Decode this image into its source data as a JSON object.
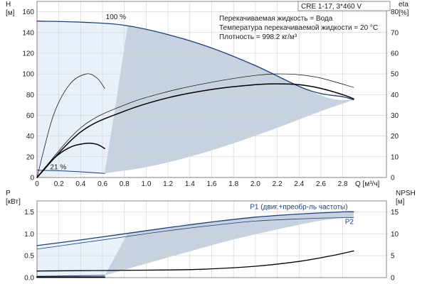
{
  "model_label": "CRE 1-17, 3*460 V",
  "info_lines": [
    "Перекачиваемая жидкость = Вода",
    "Температура перекачиваемой жидкости = 20 °C",
    "Плотность = 998.2 кг/м³"
  ],
  "colors": {
    "area_dark": "#c6d2df",
    "area_light": "#e8f0fa",
    "curve_blue": "#1e3f78",
    "curve_black": "#000000"
  },
  "chart_data": [
    {
      "type": "line",
      "id": "head-efficiency",
      "xlabel": "Q [м³/ч]",
      "ylabel": "H",
      "ylabel_unit": "[м]",
      "y2label": "eta",
      "y2label_unit": "[%]",
      "xlim": [
        0,
        3.2
      ],
      "ylim": [
        0,
        170
      ],
      "y2lim": [
        0,
        85
      ],
      "x_ticks": [
        "0",
        "0.2",
        "0.4",
        "0.6",
        "0.8",
        "1.0",
        "1.2",
        "1.4",
        "1.6",
        "1.8",
        "2.0",
        "2.2",
        "2.4",
        "2.6",
        "2.8"
      ],
      "y_ticks": [
        "0",
        "20",
        "40",
        "60",
        "80",
        "100",
        "120",
        "140",
        "160"
      ],
      "y2_ticks": [
        "0",
        "10",
        "20",
        "30",
        "40",
        "50",
        "60",
        "70",
        "80"
      ],
      "grid": true,
      "annotations": [
        {
          "text": "100 %",
          "x": 0.63,
          "y": 153
        },
        {
          "text": "21 %",
          "x": 0.12,
          "y": 8
        }
      ],
      "area": {
        "upper_x": [
          0,
          0.4,
          0.8,
          1.2,
          1.6,
          2.0,
          2.4,
          2.7,
          2.9
        ],
        "upper_y": [
          151,
          150,
          147,
          138,
          125,
          108,
          88,
          76,
          75
        ],
        "lower_x": [
          0.62,
          1.0,
          1.4,
          1.8,
          2.2,
          2.6,
          2.9
        ],
        "lower_y": [
          4,
          10,
          20,
          33,
          48,
          64,
          75
        ],
        "light_upper_x": [
          0,
          0.4,
          0.8,
          0.83
        ],
        "light_upper_y": [
          151,
          150,
          147,
          146
        ],
        "light_boundary_x": [
          0.83,
          0.72,
          0.62
        ],
        "light_boundary_y": [
          146,
          70,
          4
        ]
      },
      "series": [
        {
          "id": "head-100",
          "axis": "left",
          "color": "#1e3f78",
          "width": 1.3,
          "x": [
            0,
            0.4,
            0.8,
            1.2,
            1.6,
            2.0,
            2.4,
            2.6,
            2.8,
            2.9
          ],
          "y": [
            151,
            150,
            147,
            138,
            125,
            108,
            88,
            81,
            78,
            75
          ]
        },
        {
          "id": "head-21",
          "axis": "left",
          "color": "#1e3f78",
          "width": 1.0,
          "x": [
            0,
            0.2,
            0.4,
            0.62
          ],
          "y": [
            7,
            6.5,
            5.5,
            4
          ]
        },
        {
          "id": "eta-100",
          "axis": "right",
          "color": "#000000",
          "width": 1.5,
          "x": [
            0,
            0.4,
            0.8,
            1.2,
            1.6,
            2.0,
            2.2,
            2.4,
            2.6,
            2.8,
            2.9
          ],
          "y": [
            0,
            22,
            32,
            38.5,
            42.5,
            44.8,
            45.2,
            44.8,
            43,
            40,
            38
          ]
        },
        {
          "id": "eta-100-thin",
          "axis": "right",
          "color": "#000000",
          "width": 0.7,
          "x": [
            0,
            0.4,
            0.8,
            1.2,
            1.6,
            2.0,
            2.2,
            2.4,
            2.6,
            2.9
          ],
          "y": [
            0,
            24,
            35,
            41.5,
            46,
            49.3,
            50,
            49.6,
            48,
            43.5
          ]
        },
        {
          "id": "eta-21",
          "axis": "right",
          "color": "#000000",
          "width": 1.5,
          "x": [
            0,
            0.15,
            0.3,
            0.45,
            0.55,
            0.62
          ],
          "y": [
            0,
            9,
            14.5,
            16.5,
            16,
            14
          ]
        },
        {
          "id": "eta-21-thin",
          "axis": "right",
          "color": "#000000",
          "width": 0.7,
          "x": [
            0,
            0.15,
            0.3,
            0.45,
            0.55,
            0.62
          ],
          "y": [
            0,
            30,
            45,
            50,
            48,
            43
          ]
        }
      ]
    },
    {
      "type": "line",
      "id": "power-npsh",
      "ylabel": "P",
      "ylabel_unit": "[кВт]",
      "y2label": "NPSH",
      "y2label_unit": "[м]",
      "xlim": [
        0,
        3.2
      ],
      "ylim": [
        0,
        1.75
      ],
      "y2lim": [
        0,
        17.5
      ],
      "y_ticks": [
        "0.0",
        "0.5",
        "1.0",
        "1.5"
      ],
      "y2_ticks": [
        "0",
        "5",
        "10",
        "15"
      ],
      "grid": true,
      "area": {
        "upper_x": [
          0,
          0.4,
          0.8,
          1.2,
          1.6,
          2.0,
          2.4,
          2.8,
          2.9
        ],
        "upper_y": [
          0.73,
          0.86,
          1.0,
          1.14,
          1.27,
          1.38,
          1.45,
          1.5,
          1.5
        ],
        "lower_x": [
          0.62,
          1.0,
          1.4,
          1.8,
          2.2,
          2.6,
          2.9
        ],
        "lower_y": [
          0.05,
          0.32,
          0.6,
          0.87,
          1.1,
          1.3,
          1.38
        ],
        "light_upper_x": [
          0,
          0.4,
          0.8,
          0.83
        ],
        "light_upper_y": [
          0.73,
          0.86,
          1.0,
          1.01
        ],
        "light_boundary_x": [
          0.83,
          0.72,
          0.62
        ],
        "light_boundary_y": [
          1.01,
          0.5,
          0.05
        ]
      },
      "labels": [
        {
          "text": "P1 (двиг.+преобр-ль частоты)",
          "x": 1.95,
          "y": 1.56
        },
        {
          "text": "P2",
          "x": 2.82,
          "y": 1.22
        }
      ],
      "series": [
        {
          "id": "P1",
          "axis": "left",
          "color": "#1e3f78",
          "width": 1.3,
          "x": [
            0,
            0.4,
            0.8,
            1.2,
            1.6,
            2.0,
            2.4,
            2.8,
            2.9
          ],
          "y": [
            0.73,
            0.86,
            1.0,
            1.14,
            1.27,
            1.38,
            1.45,
            1.5,
            1.5
          ]
        },
        {
          "id": "P2",
          "axis": "left",
          "color": "#1e3f78",
          "width": 0.8,
          "x": [
            0,
            0.4,
            0.8,
            1.2,
            1.6,
            2.0,
            2.4,
            2.8,
            2.9
          ],
          "y": [
            0.65,
            0.79,
            0.93,
            1.07,
            1.19,
            1.29,
            1.34,
            1.37,
            1.37
          ]
        },
        {
          "id": "P-21",
          "axis": "left",
          "color": "#1e3f78",
          "width": 1.0,
          "x": [
            0,
            0.3,
            0.62
          ],
          "y": [
            0.03,
            0.04,
            0.05
          ]
        },
        {
          "id": "NPSH",
          "axis": "right",
          "color": "#000000",
          "width": 1.3,
          "x": [
            0,
            0.5,
            1.0,
            1.5,
            2.0,
            2.4,
            2.7,
            2.9
          ],
          "y": [
            1.5,
            1.6,
            1.7,
            1.9,
            2.6,
            3.7,
            5.0,
            6.1
          ]
        },
        {
          "id": "NPSH-21",
          "axis": "right",
          "color": "#000000",
          "width": 2.0,
          "x": [
            0,
            0.62
          ],
          "y": [
            0.1,
            0.1
          ]
        }
      ]
    }
  ]
}
